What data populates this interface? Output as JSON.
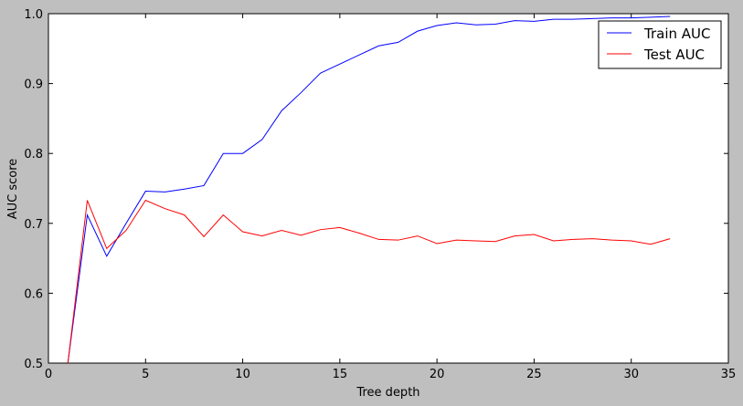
{
  "chart_data": {
    "type": "line",
    "title": "",
    "xlabel": "Tree depth",
    "ylabel": "AUC score",
    "xlim": [
      0,
      35
    ],
    "ylim": [
      0.5,
      1.0
    ],
    "xticks": [
      0,
      5,
      10,
      15,
      20,
      25,
      30,
      35
    ],
    "yticks": [
      0.5,
      0.6,
      0.7,
      0.8,
      0.9,
      1.0
    ],
    "xtick_labels": [
      "0",
      "5",
      "10",
      "15",
      "20",
      "25",
      "30",
      "35"
    ],
    "ytick_labels": [
      "0.5",
      "0.6",
      "0.7",
      "0.8",
      "0.9",
      "1.0"
    ],
    "grid": false,
    "legend_position": "top-right",
    "x": [
      1,
      2,
      3,
      4,
      5,
      6,
      7,
      8,
      9,
      10,
      11,
      12,
      13,
      14,
      15,
      16,
      17,
      18,
      19,
      20,
      21,
      22,
      23,
      24,
      25,
      26,
      27,
      28,
      29,
      30,
      31,
      32
    ],
    "series": [
      {
        "name": "Train AUC",
        "color": "#0000ff",
        "values": [
          0.5,
          0.712,
          0.653,
          0.7,
          0.746,
          0.745,
          0.749,
          0.754,
          0.8,
          0.8,
          0.82,
          0.861,
          0.887,
          0.915,
          0.928,
          0.941,
          0.954,
          0.959,
          0.975,
          0.983,
          0.987,
          0.984,
          0.985,
          0.99,
          0.989,
          0.992,
          0.992,
          0.993,
          0.994,
          0.994,
          0.995,
          0.996
        ]
      },
      {
        "name": "Test AUC",
        "color": "#ff0000",
        "values": [
          0.5,
          0.733,
          0.664,
          0.69,
          0.733,
          0.721,
          0.712,
          0.681,
          0.712,
          0.688,
          0.682,
          0.69,
          0.683,
          0.691,
          0.694,
          0.686,
          0.677,
          0.676,
          0.682,
          0.671,
          0.676,
          0.675,
          0.674,
          0.682,
          0.684,
          0.675,
          0.677,
          0.678,
          0.676,
          0.675,
          0.67,
          0.678
        ]
      }
    ]
  }
}
